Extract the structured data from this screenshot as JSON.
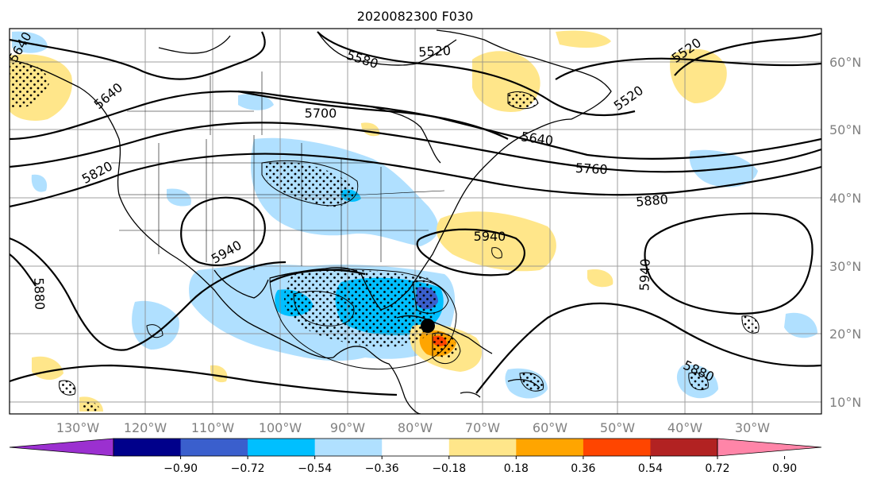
{
  "title": "2020082300 F030",
  "lat_labels": [
    "60°N",
    "50°N",
    "40°N",
    "30°N",
    "20°N",
    "10°N"
  ],
  "lon_labels": [
    "130°W",
    "120°W",
    "110°W",
    "100°W",
    "90°W",
    "80°W",
    "70°W",
    "60°W",
    "50°W",
    "40°W",
    "30°W"
  ],
  "contour_labels": [
    "5640",
    "5640",
    "5580",
    "5520",
    "5520",
    "5520",
    "5700",
    "5640",
    "5760",
    "5820",
    "5880",
    "5940",
    "5940",
    "5940",
    "5880",
    "5880"
  ],
  "colorbar": {
    "ticks": [
      "−0.90",
      "−0.72",
      "−0.54",
      "−0.36",
      "−0.18",
      "0.18",
      "0.36",
      "0.54",
      "0.72",
      "0.90"
    ],
    "colors": [
      "#9b30d0",
      "#00008b",
      "#3a5fcd",
      "#00bfff",
      "#b0e0ff",
      "#ffffff",
      "#ffe68a",
      "#ffa500",
      "#ff4500",
      "#b22222",
      "#ff85a8"
    ]
  },
  "marker": {
    "label": "storm-center",
    "color": "#000000"
  }
}
